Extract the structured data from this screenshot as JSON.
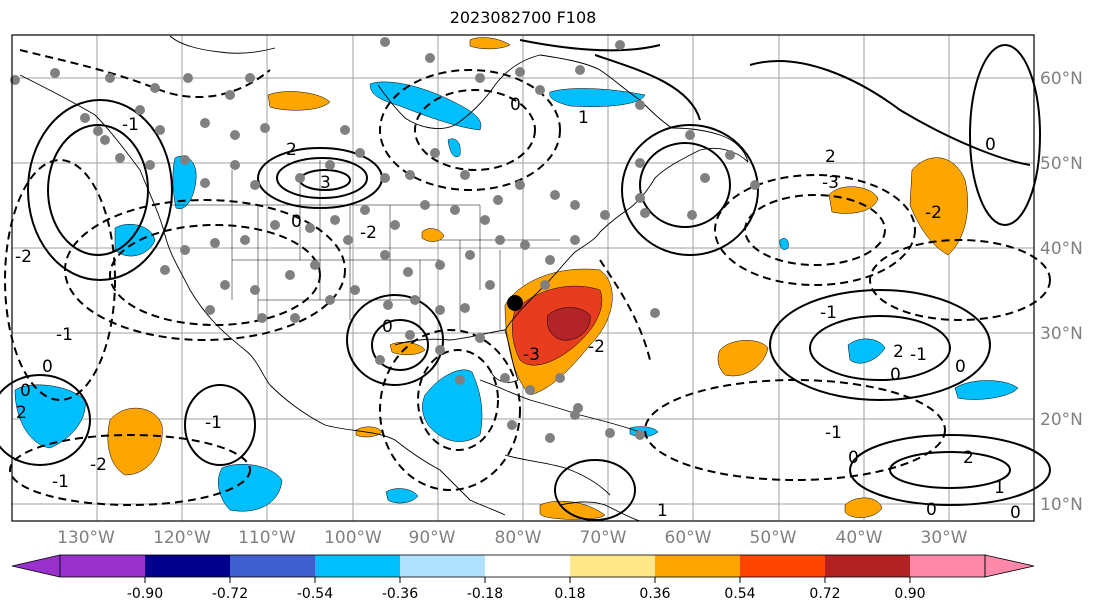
{
  "title": "2023082700 F108",
  "map": {
    "projection": "equirectangular",
    "lon_range_deg": [
      -140,
      -20
    ],
    "lat_range_deg": [
      8,
      65
    ],
    "graticule_color": "#a0a0a0",
    "coastline_color": "#000000",
    "longitude_labels": [
      "130°W",
      "120°W",
      "110°W",
      "100°W",
      "90°W",
      "80°W",
      "70°W",
      "60°W",
      "50°W",
      "40°W",
      "30°W"
    ],
    "latitude_labels": [
      "60°N",
      "50°N",
      "40°N",
      "30°N",
      "20°N",
      "10°N"
    ]
  },
  "contours": {
    "style": "black lines; solid = positive, dashed = negative",
    "labels": [
      "0",
      "-1",
      "-2",
      "1",
      "2",
      "3",
      "-3"
    ]
  },
  "shading": {
    "features": [
      {
        "name": "warm-max-western-atlantic",
        "color": "#e83c1f"
      },
      {
        "name": "warm-core-western-atlantic",
        "color": "#b22428"
      }
    ]
  },
  "stations": {
    "marker_color": "#808080",
    "highlight_color": "#000000"
  },
  "colorbar": {
    "tick_labels": [
      "-0.90",
      "-0.72",
      "-0.54",
      "-0.36",
      "-0.18",
      "0.18",
      "0.36",
      "0.54",
      "0.72",
      "0.90"
    ],
    "colors": [
      "#9932cc",
      "#00008b",
      "#3f5fcf",
      "#00bfff",
      "#b0e2ff",
      "#ffffff",
      "#ffe88a",
      "#ffa500",
      "#ff4500",
      "#b22222",
      "#ff88aa"
    ]
  }
}
